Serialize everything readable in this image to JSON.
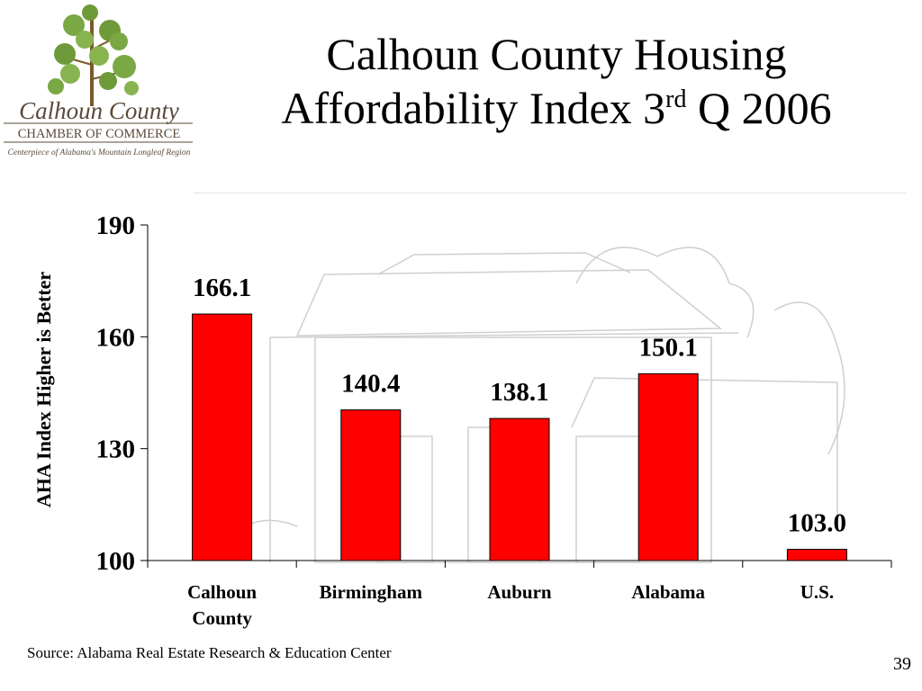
{
  "slide": {
    "title_line1": "Calhoun County Housing",
    "title_line2_main": "Affordability Index 3",
    "title_line2_sup": "rd",
    "title_line2_end": " Q 2006",
    "source": "Source: Alabama Real Estate Research & Education Center",
    "page_number": "39"
  },
  "logo": {
    "line1": "Calhoun County",
    "line2": "CHAMBER OF COMMERCE",
    "line3": "Centerpiece of Alabama's Mountain Longleaf Region"
  },
  "colors": {
    "bar": "#ff0000",
    "bar_outline": "#000000",
    "axis": "#000000",
    "background_sketch": "#cfcfcf"
  },
  "chart_data": {
    "type": "bar",
    "categories": [
      "Calhoun County",
      "Birmingham",
      "Auburn",
      "Alabama",
      "U.S."
    ],
    "category_lines": [
      [
        "Calhoun",
        "County"
      ],
      [
        "Birmingham"
      ],
      [
        "Auburn"
      ],
      [
        "Alabama"
      ],
      [
        "U.S."
      ]
    ],
    "values": [
      166.1,
      140.4,
      138.1,
      150.1,
      103.0
    ],
    "data_labels": [
      "166.1",
      "140.4",
      "138.1",
      "150.1",
      "103.0"
    ],
    "ylabel": "AHA Index Higher is Better",
    "ylim": [
      100,
      190
    ],
    "yticks": [
      100,
      130,
      160,
      190
    ],
    "grid": false,
    "legend": "none"
  }
}
